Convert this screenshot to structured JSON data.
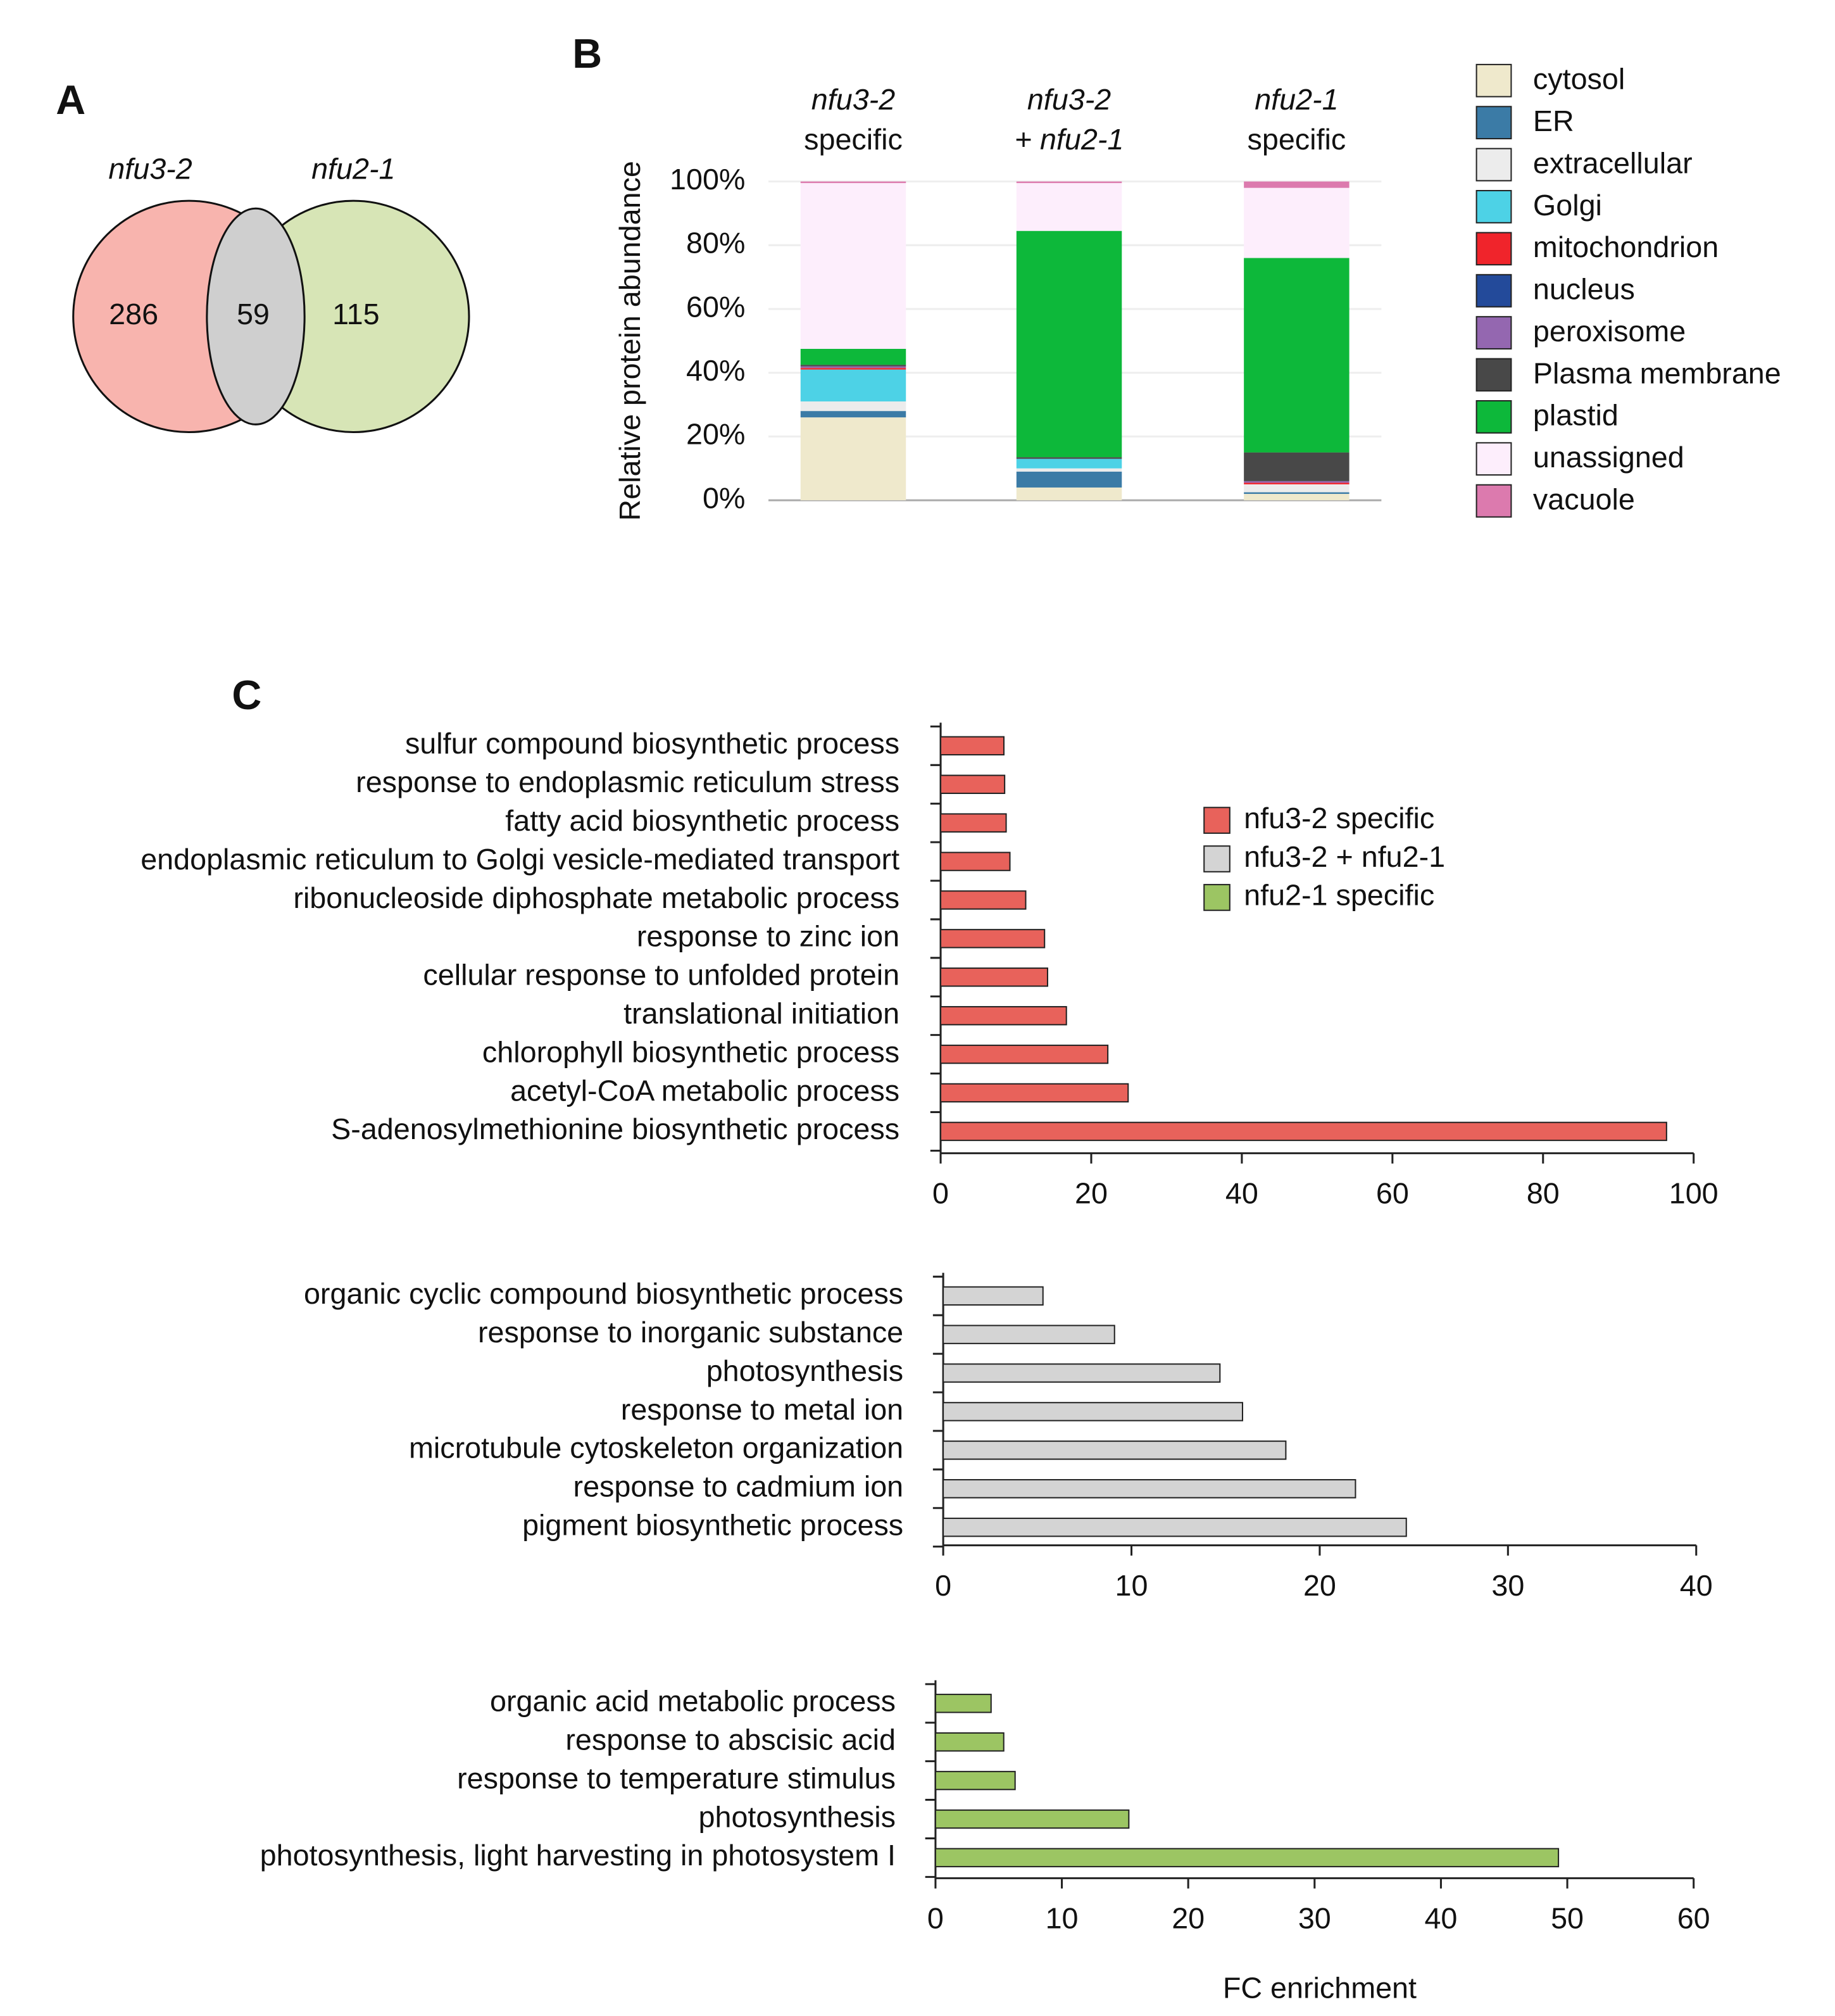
{
  "chart_data": [
    {
      "type": "venn",
      "panel": "A",
      "sets": [
        {
          "name": "nfu3-2",
          "color": "#f8b4ae"
        },
        {
          "name": "nfu2-1",
          "color": "#d7e5b6"
        }
      ],
      "overlap_color": "#cfcfcf",
      "values": [
        286,
        59,
        115
      ]
    },
    {
      "type": "stacked_bar",
      "panel": "B",
      "ylabel": "Relative protein abundance",
      "categories": [
        [
          "nfu3-2",
          "specific"
        ],
        [
          "nfu3-2",
          "+ nfu2-1"
        ],
        [
          "nfu2-1",
          "specific"
        ]
      ],
      "ylim": [
        0,
        100
      ],
      "yticks": [
        {
          "value": 0,
          "label": "0%"
        },
        {
          "value": 20,
          "label": "20%"
        },
        {
          "value": 40,
          "label": "40%"
        },
        {
          "value": 60,
          "label": "60%"
        },
        {
          "value": 80,
          "label": "80%"
        },
        {
          "value": 100,
          "label": "100%"
        }
      ],
      "grid": true,
      "series": [
        {
          "name": "cytosol",
          "color": "#efe9cc",
          "values": [
            26,
            4,
            2
          ]
        },
        {
          "name": "ER",
          "color": "#3b7ba6",
          "values": [
            2,
            5,
            0.5
          ]
        },
        {
          "name": "extracellular",
          "color": "#ececec",
          "values": [
            3,
            1,
            2.5
          ]
        },
        {
          "name": "Golgi",
          "color": "#4dd2e6",
          "values": [
            10,
            3,
            0
          ]
        },
        {
          "name": "mitochondrion",
          "color": "#f0242b",
          "values": [
            0.5,
            0,
            0.5
          ]
        },
        {
          "name": "nucleus",
          "color": "#234a9a",
          "values": [
            0,
            0,
            0
          ]
        },
        {
          "name": "peroxisome",
          "color": "#9467b0",
          "values": [
            0.5,
            0,
            0.5
          ]
        },
        {
          "name": "Plasma membrane",
          "color": "#484848",
          "values": [
            0.5,
            0.5,
            9
          ]
        },
        {
          "name": "plastid",
          "color": "#0db83a",
          "values": [
            5,
            71,
            61
          ]
        },
        {
          "name": "unassigned",
          "color": "#fdeefc",
          "values": [
            52,
            15,
            22
          ]
        },
        {
          "name": "vacuole",
          "color": "#dc7aae",
          "values": [
            0.5,
            0.5,
            2
          ]
        }
      ]
    },
    {
      "type": "hbar",
      "panel": "C",
      "categories": [
        "sulfur compound biosynthetic process",
        "response to endoplasmic reticulum stress",
        "fatty acid biosynthetic process",
        "endoplasmic reticulum to Golgi vesicle-mediated transport",
        "ribonucleoside diphosphate metabolic process",
        "response to zinc ion",
        "cellular response to unfolded protein",
        "translational initiation",
        "chlorophyll biosynthetic process",
        "acetyl-CoA metabolic process",
        "S-adenosylmethionine biosynthetic process"
      ],
      "series": [
        {
          "name": "nfu3-2 specific",
          "color": "#e8625b",
          "values": [
            8.4,
            8.5,
            8.7,
            9.2,
            11.3,
            13.8,
            14.2,
            16.7,
            22.2,
            24.9,
            96.4
          ]
        }
      ],
      "xlim": [
        0,
        100
      ],
      "xticks": [
        0,
        20,
        40,
        60,
        80,
        100
      ]
    },
    {
      "type": "hbar",
      "categories": [
        "organic cyclic compound biosynthetic process",
        "response to inorganic substance",
        "photosynthesis",
        "response to metal ion",
        "microtubule cytoskeleton organization",
        "response to cadmium ion",
        "pigment biosynthetic process"
      ],
      "series": [
        {
          "name": "nfu3-2 + nfu2-1",
          "color": "#d4d4d4",
          "values": [
            5.3,
            9.1,
            14.7,
            15.9,
            18.2,
            21.9,
            24.6
          ]
        }
      ],
      "xlim": [
        0,
        40
      ],
      "xticks": [
        0,
        10,
        20,
        30,
        40
      ]
    },
    {
      "type": "hbar",
      "categories": [
        "organic acid metabolic process",
        "response to abscisic acid",
        "response to temperature stimulus",
        "photosynthesis",
        "photosynthesis, light harvesting in photosystem I"
      ],
      "series": [
        {
          "name": "nfu2-1 specific",
          "color": "#9cc563",
          "values": [
            4.4,
            5.4,
            6.3,
            15.3,
            49.3
          ]
        }
      ],
      "xlim": [
        0,
        60
      ],
      "xticks": [
        0,
        10,
        20,
        30,
        40,
        50,
        60
      ],
      "xlabel": "FC enrichment"
    }
  ]
}
